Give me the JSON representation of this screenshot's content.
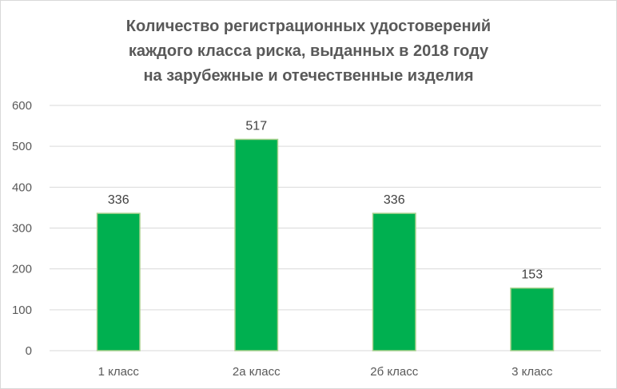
{
  "chart_data": {
    "type": "bar",
    "title_lines": [
      "Количество регистрационных удостоверений",
      "каждого класса риска, выданных в 2018 году",
      "на зарубежные и отечественные изделия"
    ],
    "categories": [
      "1 класс",
      "2а класс",
      "2б класс",
      "3 класс"
    ],
    "values": [
      336,
      517,
      336,
      153
    ],
    "data_labels": [
      "336",
      "517",
      "336",
      "153"
    ],
    "y_ticks": [
      "0",
      "100",
      "200",
      "300",
      "400",
      "500",
      "600"
    ],
    "ylim": [
      0,
      600
    ],
    "grid": true,
    "legend": "none",
    "bar_color": "#00b050",
    "bar_edge_color": "#a9d18e",
    "grid_color": "#d9d9d9"
  }
}
